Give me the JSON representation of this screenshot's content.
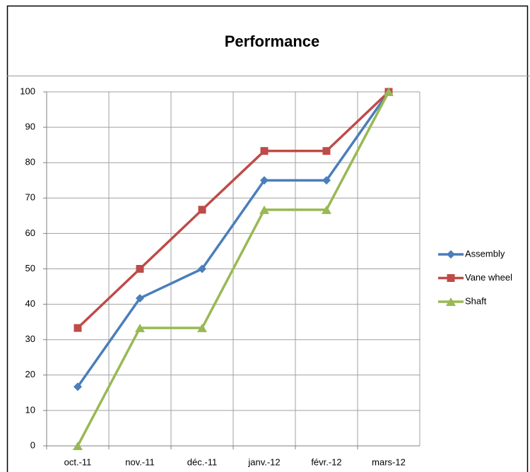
{
  "chart_data": {
    "type": "line",
    "title": "Performance",
    "categories": [
      "oct.-11",
      "nov.-11",
      "déc.-11",
      "janv.-12",
      "févr.-12",
      "mars-12"
    ],
    "series": [
      {
        "name": "Assembly",
        "color": "#4a7ebb",
        "marker": "diamond",
        "values": [
          16.7,
          41.7,
          50,
          75,
          75,
          100
        ]
      },
      {
        "name": "Vane wheel",
        "color": "#be4b48",
        "marker": "square",
        "values": [
          33.3,
          50,
          66.7,
          83.3,
          83.3,
          100
        ]
      },
      {
        "name": "Shaft",
        "color": "#98b954",
        "marker": "triangle",
        "values": [
          0,
          33.3,
          33.3,
          66.7,
          66.7,
          100
        ]
      }
    ],
    "ylim": [
      0,
      100
    ],
    "yticks": [
      0,
      10,
      20,
      30,
      40,
      50,
      60,
      70,
      80,
      90,
      100
    ],
    "grid": true,
    "legend": "right"
  }
}
